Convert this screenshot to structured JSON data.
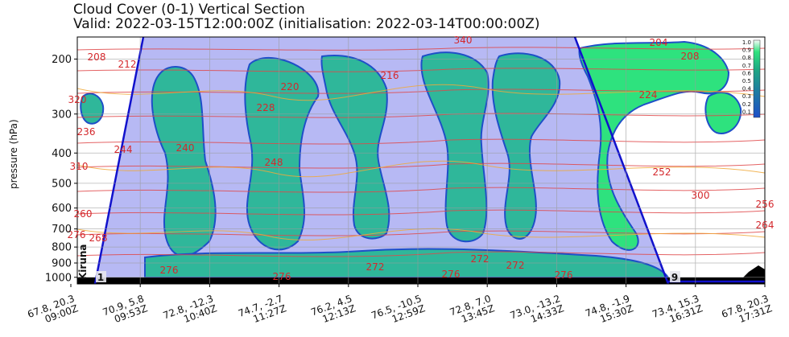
{
  "chart_data": {
    "type": "heatmap",
    "title": "Cloud Cover (0-1) Vertical Section",
    "subtitle": "Valid: 2022-03-15T12:00:00Z (initialisation: 2022-03-14T00:00:00Z)",
    "ylabel": "pressure (hPa)",
    "y_scale": "log",
    "ylim": [
      1050,
      170
    ],
    "y_ticks": [
      200,
      300,
      400,
      500,
      600,
      700,
      800,
      900,
      1000
    ],
    "x_ticks": [
      "67.8, 20.3\n09:00Z",
      "70.9, 5.8\n09:53Z",
      "72.8, -12.3\n10:40Z",
      "74.7, -2.7\n11:27Z",
      "76.2, 4.5\n12:13Z",
      "76.5, -10.5\n12:59Z",
      "72.8, 7.0\n13:45Z",
      "73.0, -13.2\n14:33Z",
      "74.8, -1.9\n15:30Z",
      "73.4, 15.3\n16:31Z",
      "67.8, 20.3\n17:31Z"
    ],
    "grid": true,
    "colorbar": {
      "ticks": [
        "1.0",
        "0.9",
        "0.8",
        "0.7",
        "0.6",
        "0.5",
        "0.4",
        "0.3",
        "0.2",
        "0.1"
      ],
      "colors": [
        "#f4fbf6",
        "#2ee27e",
        "#1fa385",
        "#1e7ea0",
        "#1e4fc8"
      ]
    },
    "contour_labels": [
      "208",
      "212",
      "220",
      "216",
      "228",
      "340",
      "204",
      "208",
      "224",
      "236",
      "320",
      "244",
      "240",
      "248",
      "310",
      "252",
      "300",
      "260",
      "256",
      "268",
      "264",
      "276",
      "272",
      "276",
      "276",
      "272",
      "276",
      "276",
      "272"
    ],
    "location_label": "Kiruna",
    "markers": [
      "1",
      "9"
    ],
    "colors": {
      "flight_path": "#1111cc",
      "cloud_low": "#b7b9f4",
      "cloud_mid": "#2fb79a",
      "cloud_high": "#2ee27e",
      "theta_contours": "#e0484a",
      "temp_contours": "#f0a93a",
      "ground": "#000000"
    }
  }
}
